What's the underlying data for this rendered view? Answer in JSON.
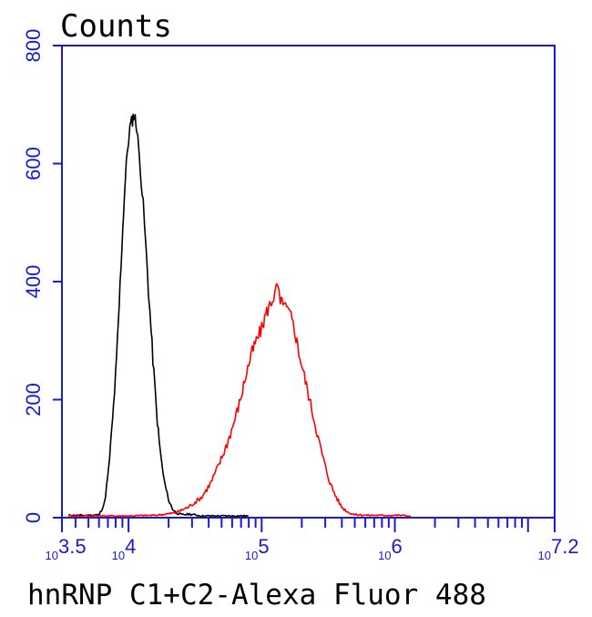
{
  "chart_data": {
    "type": "line",
    "title": "Counts",
    "xlabel": "hnRNP C1+C2-Alexa Fluor 488",
    "ylabel": "",
    "xscale": "log",
    "xlim": [
      3.5,
      7.2
    ],
    "ylim": [
      0,
      800
    ],
    "yticks": [
      0,
      200,
      400,
      600,
      800
    ],
    "xticks": [
      {
        "value": 3.5,
        "base": "10",
        "exp": "3.5"
      },
      {
        "value": 4,
        "base": "10",
        "exp": "4"
      },
      {
        "value": 5,
        "base": "10",
        "exp": "5"
      },
      {
        "value": 6,
        "base": "10",
        "exp": "6"
      },
      {
        "value": 7.2,
        "base": "10",
        "exp": "7.2"
      }
    ],
    "grid": false,
    "legend": "none",
    "series": [
      {
        "color": "#000000",
        "x": [
          3.55,
          3.7,
          3.78,
          3.82,
          3.85,
          3.88,
          3.91,
          3.93,
          3.95,
          3.97,
          3.99,
          4.01,
          4.03,
          4.04,
          4.05,
          4.06,
          4.07,
          4.09,
          4.11,
          4.13,
          4.15,
          4.17,
          4.19,
          4.21,
          4.23,
          4.25,
          4.27,
          4.29,
          4.31,
          4.33,
          4.36,
          4.4,
          4.46,
          4.55,
          4.7,
          4.9
        ],
        "y": [
          4,
          4,
          5,
          25,
          80,
          165,
          265,
          360,
          460,
          550,
          620,
          660,
          675,
          682,
          675,
          665,
          640,
          590,
          530,
          460,
          385,
          315,
          245,
          180,
          130,
          90,
          60,
          40,
          25,
          15,
          8,
          5,
          6,
          3,
          3,
          3
        ]
      },
      {
        "color": "#ff0000",
        "x": [
          3.55,
          4.0,
          4.2,
          4.35,
          4.45,
          4.55,
          4.62,
          4.68,
          4.74,
          4.79,
          4.84,
          4.88,
          4.92,
          4.96,
          5.0,
          5.03,
          5.06,
          5.08,
          5.1,
          5.12,
          5.14,
          5.16,
          5.18,
          5.2,
          5.22,
          5.25,
          5.28,
          5.32,
          5.36,
          5.4,
          5.44,
          5.48,
          5.52,
          5.56,
          5.6,
          5.65,
          5.7,
          5.8,
          5.95,
          6.0,
          6.05,
          6.1,
          6.12
        ],
        "y": [
          3,
          3,
          4,
          8,
          18,
          35,
          60,
          90,
          125,
          160,
          200,
          240,
          275,
          300,
          320,
          345,
          360,
          370,
          380,
          395,
          360,
          370,
          355,
          350,
          340,
          315,
          280,
          240,
          200,
          160,
          120,
          85,
          55,
          35,
          18,
          9,
          5,
          4,
          4,
          4,
          4,
          3,
          2
        ]
      }
    ]
  }
}
